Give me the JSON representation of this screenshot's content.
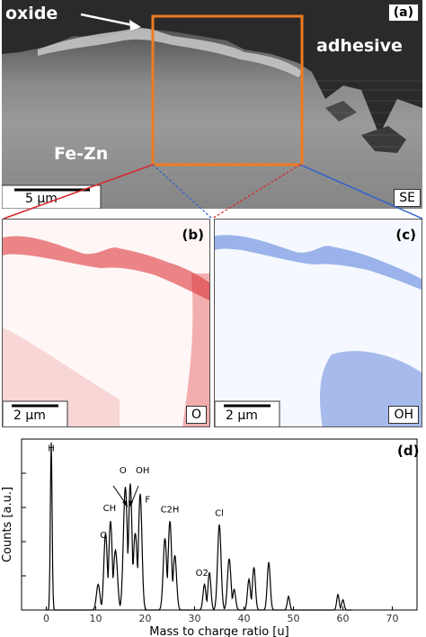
{
  "panel_a": {
    "letter": "(a)",
    "labels": {
      "oxide": "oxide",
      "adhesive": "adhesive",
      "alloy": "Fe-Zn"
    },
    "scalebar": "5 µm",
    "detector": "SE"
  },
  "panel_b": {
    "letter": "(b)",
    "scalebar": "2 µm",
    "species": "O",
    "color": "#d9262a"
  },
  "panel_c": {
    "letter": "(c)",
    "scalebar": "2 µm",
    "species": "OH",
    "color": "#2f5fd0"
  },
  "chart_data": {
    "type": "line",
    "panel_letter": "(d)",
    "xlabel": "Mass to charge ratio [u]",
    "ylabel": "Counts [a.u.]",
    "xlim": [
      -5,
      75
    ],
    "xticks": [
      0,
      10,
      20,
      30,
      40,
      50,
      60,
      70
    ],
    "log_scale_y": true,
    "peaks": [
      {
        "x": 1,
        "label": "H"
      },
      {
        "x": 12,
        "label": "C"
      },
      {
        "x": 13,
        "label": "CH"
      },
      {
        "x": 16,
        "label": "O"
      },
      {
        "x": 17,
        "label": "OH"
      },
      {
        "x": 19,
        "label": "F"
      },
      {
        "x": 25,
        "label": "C2H"
      },
      {
        "x": 32,
        "label": "O2"
      },
      {
        "x": 35,
        "label": "Cl"
      }
    ]
  }
}
